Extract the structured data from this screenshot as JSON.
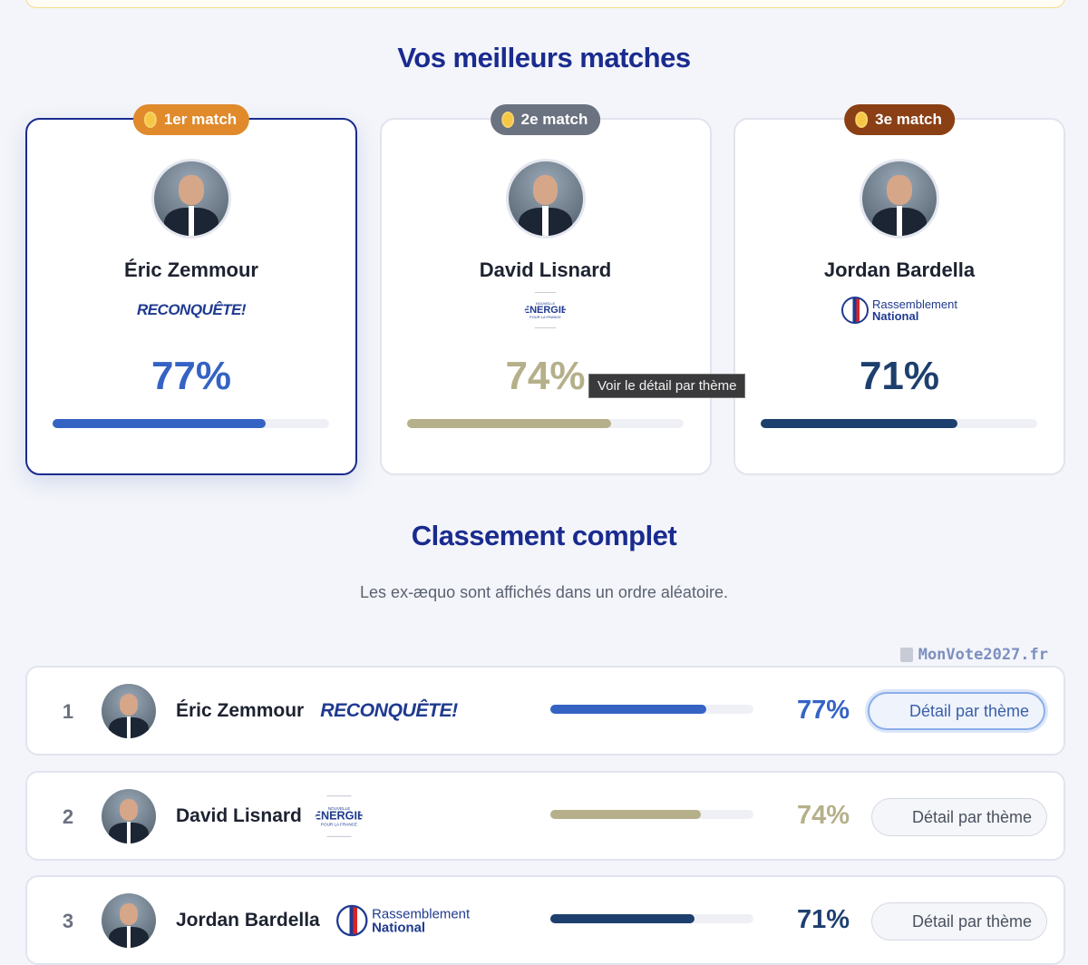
{
  "bar_scale": [
    0,
    100
  ],
  "top": {
    "title": "Vos meilleurs matches",
    "tooltip": "Voir le détail par thème"
  },
  "podium": [
    {
      "badge": "1er match",
      "badge_color": "#e08a2c",
      "name": "Éric Zemmour",
      "party": {
        "style": "reconquete",
        "lines": [
          "RECONQUÊTE!"
        ]
      },
      "value": 77,
      "value_label": "77%",
      "color": "#3563c4",
      "selected": true
    },
    {
      "badge": "2e match",
      "badge_color": "#6b7280",
      "name": "David Lisnard",
      "party": {
        "style": "energie",
        "lines": [
          "NOUVELLE",
          "ÉNERGIE",
          "POUR LA FRANCE"
        ]
      },
      "value": 74,
      "value_label": "74%",
      "color": "#b5b08a",
      "selected": false
    },
    {
      "badge": "3e match",
      "badge_color": "#8a3f14",
      "name": "Jordan Bardella",
      "party": {
        "style": "rn",
        "lines": [
          "Rassemblement",
          "National"
        ]
      },
      "value": 71,
      "value_label": "71%",
      "color": "#1d3f6e",
      "selected": false
    }
  ],
  "ranking": {
    "title": "Classement complet",
    "note": "Les ex-æquo sont affichés dans un ordre aléatoire.",
    "watermark": "MonVote2027.fr",
    "rows": [
      {
        "rank": 1,
        "name": "Éric Zemmour",
        "party": {
          "style": "reconquete",
          "lines": [
            "RECONQUÊTE!"
          ]
        },
        "value": 77,
        "value_label": "77%",
        "color": "#3563c4",
        "button": "Détail par thème",
        "focused": true
      },
      {
        "rank": 2,
        "name": "David Lisnard",
        "party": {
          "style": "energie",
          "lines": [
            "NOUVELLE",
            "ÉNERGIE",
            "POUR LA FRANCE"
          ]
        },
        "value": 74,
        "value_label": "74%",
        "color": "#b5b08a",
        "button": "Détail par thème",
        "focused": false
      },
      {
        "rank": 3,
        "name": "Jordan Bardella",
        "party": {
          "style": "rn",
          "lines": [
            "Rassemblement",
            "National"
          ]
        },
        "value": 71,
        "value_label": "71%",
        "color": "#1d3f6e",
        "button": "Détail par thème",
        "focused": false
      }
    ]
  }
}
